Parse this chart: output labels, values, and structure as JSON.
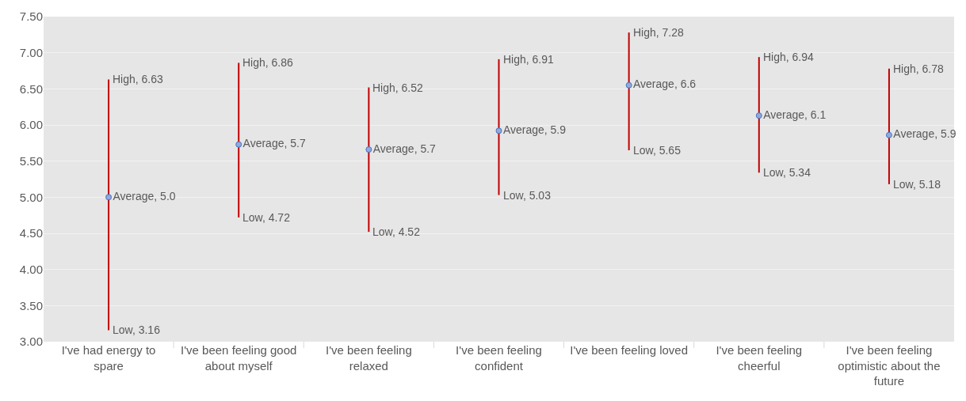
{
  "chart_data": {
    "type": "scatter",
    "categories": [
      "I've had energy to spare",
      "I've been feeling good about myself",
      "I've been feeling relaxed",
      "I've been feeling confident",
      "I've been feeling loved",
      "I've been feeling cheerful",
      "I've been feeling optimistic about the future"
    ],
    "series": [
      {
        "color": "#8faadc",
        "values": [
          5.0,
          5.73,
          5.66,
          5.92,
          6.55,
          6.13,
          5.86
        ],
        "value_labels": [
          "Average, 5.0",
          "Average, 5.7",
          "Average, 5.7",
          "Average, 5.9",
          "Average, 6.6",
          "Average, 6.1",
          "Average, 5.9"
        ],
        "errors": [
          [
            3.16,
            6.63
          ],
          [
            4.72,
            6.86
          ],
          [
            4.52,
            6.52
          ],
          [
            5.03,
            6.91
          ],
          [
            5.65,
            7.28
          ],
          [
            5.34,
            6.94
          ],
          [
            5.18,
            6.78
          ]
        ]
      }
    ],
    "annotations": [
      {
        "text": "High, 6.63",
        "x": "I've had energy to spare",
        "y": 6.63
      },
      {
        "text": "Low, 3.16",
        "x": "I've had energy to spare",
        "y": 3.16
      },
      {
        "text": "High, 6.86",
        "x": "I've been feeling good about myself",
        "y": 6.86
      },
      {
        "text": "Low, 4.72",
        "x": "I've been feeling good about myself",
        "y": 4.72
      },
      {
        "text": "High, 6.52",
        "x": "I've been feeling relaxed",
        "y": 6.52
      },
      {
        "text": "Low, 4.52",
        "x": "I've been feeling relaxed",
        "y": 4.52
      },
      {
        "text": "High, 6.91",
        "x": "I've been feeling confident",
        "y": 6.91
      },
      {
        "text": "Low, 5.03",
        "x": "I've been feeling confident",
        "y": 5.03
      },
      {
        "text": "High, 7.28",
        "x": "I've been feeling loved",
        "y": 7.28
      },
      {
        "text": "Low, 5.65",
        "x": "I've been feeling loved",
        "y": 5.65
      },
      {
        "text": "High, 6.94",
        "x": "I've been feeling cheerful",
        "y": 6.94
      },
      {
        "text": "Low, 5.34",
        "x": "I've been feeling cheerful",
        "y": 5.34
      },
      {
        "text": "High, 6.78",
        "x": "I've been feeling optimistic about the future",
        "y": 6.78
      },
      {
        "text": "Low, 5.18",
        "x": "I've been feeling optimistic about the future",
        "y": 5.18
      }
    ],
    "ylim": [
      3.0,
      7.5
    ],
    "yticks": [
      {
        "value": 3.0,
        "label": "3.00"
      },
      {
        "value": 3.5,
        "label": "3.50"
      },
      {
        "value": 4.0,
        "label": "4.00"
      },
      {
        "value": 4.5,
        "label": "4.50"
      },
      {
        "value": 5.0,
        "label": "5.00"
      },
      {
        "value": 5.5,
        "label": "5.50"
      },
      {
        "value": 6.0,
        "label": "6.00"
      },
      {
        "value": 6.5,
        "label": "6.50"
      },
      {
        "value": 7.0,
        "label": "7.00"
      },
      {
        "value": 7.5,
        "label": "7.50"
      }
    ],
    "grid": "y",
    "marker": "circle"
  }
}
